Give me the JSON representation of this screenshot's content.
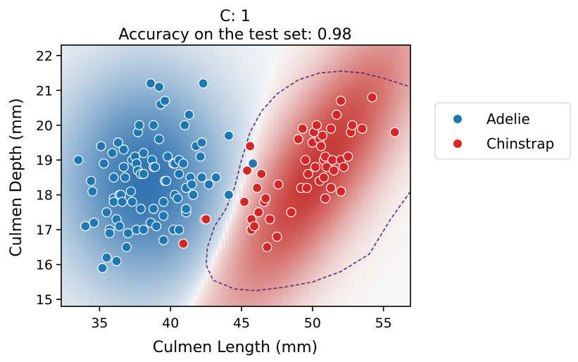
{
  "chart_data": {
    "type": "scatter",
    "title_line1": "C: 1",
    "title_line2": "Accuracy on the test set: 0.98",
    "xlabel": "Culmen Length (mm)",
    "ylabel": "Culmen Depth (mm)",
    "xlim": [
      32.3,
      56.9
    ],
    "ylim": [
      14.8,
      22.3
    ],
    "xticks": [
      35,
      40,
      45,
      50,
      55
    ],
    "yticks": [
      15,
      16,
      17,
      18,
      19,
      20,
      21,
      22
    ],
    "grid": false,
    "legend_placement": "outside-right",
    "background": "decision-function heatmap (blue = Adelie, red = Chinstrap) with dashed decision boundary",
    "colors": {
      "Adelie": "#1f77b4",
      "Chinstrap": "#d62728",
      "boundary": "#5b2a6e"
    },
    "series": [
      {
        "name": "Adelie",
        "points": [
          [
            33.5,
            19.0
          ],
          [
            34.0,
            17.1
          ],
          [
            34.4,
            18.4
          ],
          [
            34.5,
            18.1
          ],
          [
            34.6,
            17.2
          ],
          [
            35.1,
            19.4
          ],
          [
            35.2,
            15.9
          ],
          [
            35.3,
            18.9
          ],
          [
            35.5,
            17.5
          ],
          [
            35.5,
            16.2
          ],
          [
            35.7,
            17.0
          ],
          [
            35.7,
            16.9
          ],
          [
            35.9,
            19.2
          ],
          [
            36.0,
            18.5
          ],
          [
            36.0,
            17.9
          ],
          [
            36.0,
            17.8
          ],
          [
            36.2,
            16.1
          ],
          [
            36.2,
            17.3
          ],
          [
            36.3,
            19.5
          ],
          [
            36.4,
            18.0
          ],
          [
            36.4,
            17.1
          ],
          [
            36.5,
            18.0
          ],
          [
            36.6,
            17.8
          ],
          [
            36.7,
            18.8
          ],
          [
            36.7,
            19.3
          ],
          [
            36.8,
            18.5
          ],
          [
            36.9,
            16.5
          ],
          [
            37.0,
            16.9
          ],
          [
            37.2,
            18.1
          ],
          [
            37.3,
            19.0
          ],
          [
            37.3,
            17.8
          ],
          [
            37.5,
            19.1
          ],
          [
            37.6,
            18.9
          ],
          [
            37.6,
            17.0
          ],
          [
            37.7,
            19.8
          ],
          [
            37.7,
            18.7
          ],
          [
            37.8,
            20.0
          ],
          [
            37.9,
            18.6
          ],
          [
            37.9,
            17.6
          ],
          [
            38.1,
            18.6
          ],
          [
            38.1,
            17.0
          ],
          [
            38.1,
            19.2
          ],
          [
            38.6,
            17.2
          ],
          [
            38.6,
            21.2
          ],
          [
            38.7,
            19.0
          ],
          [
            38.8,
            20.0
          ],
          [
            38.8,
            17.6
          ],
          [
            38.8,
            18.8
          ],
          [
            38.9,
            18.8
          ],
          [
            39.0,
            17.1
          ],
          [
            39.2,
            21.1
          ],
          [
            39.2,
            19.6
          ],
          [
            39.3,
            20.6
          ],
          [
            39.5,
            16.7
          ],
          [
            39.5,
            17.8
          ],
          [
            39.5,
            17.4
          ],
          [
            39.6,
            20.7
          ],
          [
            39.6,
            18.4
          ],
          [
            39.7,
            18.4
          ],
          [
            39.8,
            19.1
          ],
          [
            40.2,
            17.0
          ],
          [
            40.2,
            18.9
          ],
          [
            40.3,
            18.0
          ],
          [
            40.3,
            18.9
          ],
          [
            40.5,
            17.9
          ],
          [
            40.6,
            18.6
          ],
          [
            40.6,
            17.0
          ],
          [
            40.6,
            19.0
          ],
          [
            40.9,
            18.9
          ],
          [
            41.0,
            20.0
          ],
          [
            41.1,
            17.5
          ],
          [
            41.1,
            17.6
          ],
          [
            41.1,
            18.2
          ],
          [
            41.3,
            20.3
          ],
          [
            41.4,
            18.5
          ],
          [
            41.5,
            18.3
          ],
          [
            41.6,
            18.0
          ],
          [
            41.8,
            19.4
          ],
          [
            42.1,
            19.1
          ],
          [
            42.2,
            18.5
          ],
          [
            42.2,
            19.5
          ],
          [
            42.3,
            21.2
          ],
          [
            42.7,
            18.3
          ],
          [
            43.2,
            18.5
          ],
          [
            44.1,
            19.7
          ],
          [
            44.1,
            18.0
          ],
          [
            45.8,
            18.9
          ]
        ]
      },
      {
        "name": "Chinstrap",
        "points": [
          [
            40.9,
            16.6
          ],
          [
            42.4,
            17.3
          ],
          [
            42.5,
            17.3
          ],
          [
            45.2,
            17.8
          ],
          [
            45.4,
            18.7
          ],
          [
            45.6,
            19.4
          ],
          [
            45.7,
            17.3
          ],
          [
            45.7,
            17.0
          ],
          [
            45.9,
            17.1
          ],
          [
            46.1,
            18.2
          ],
          [
            46.2,
            17.5
          ],
          [
            46.4,
            18.6
          ],
          [
            46.6,
            17.8
          ],
          [
            46.7,
            17.9
          ],
          [
            46.8,
            16.5
          ],
          [
            47.0,
            17.3
          ],
          [
            47.5,
            16.8
          ],
          [
            47.6,
            18.3
          ],
          [
            48.5,
            17.5
          ],
          [
            49.0,
            19.6
          ],
          [
            49.2,
            18.2
          ],
          [
            49.3,
            19.9
          ],
          [
            49.5,
            19.0
          ],
          [
            49.6,
            18.2
          ],
          [
            49.7,
            18.6
          ],
          [
            50.0,
            19.5
          ],
          [
            50.1,
            19.8
          ],
          [
            50.2,
            18.8
          ],
          [
            50.3,
            20.0
          ],
          [
            50.5,
            19.6
          ],
          [
            50.5,
            18.4
          ],
          [
            50.6,
            19.4
          ],
          [
            50.7,
            19.7
          ],
          [
            50.8,
            19.0
          ],
          [
            50.8,
            18.5
          ],
          [
            50.9,
            17.9
          ],
          [
            50.9,
            19.1
          ],
          [
            51.0,
            18.8
          ],
          [
            51.3,
            19.9
          ],
          [
            51.3,
            18.2
          ],
          [
            51.4,
            19.0
          ],
          [
            51.5,
            18.7
          ],
          [
            51.7,
            20.3
          ],
          [
            52.0,
            18.1
          ],
          [
            52.0,
            19.0
          ],
          [
            52.0,
            20.7
          ],
          [
            52.2,
            18.8
          ],
          [
            52.5,
            19.1
          ],
          [
            52.7,
            19.8
          ],
          [
            52.8,
            20.0
          ],
          [
            53.5,
            19.9
          ],
          [
            54.2,
            20.8
          ],
          [
            55.8,
            19.8
          ]
        ]
      }
    ]
  }
}
